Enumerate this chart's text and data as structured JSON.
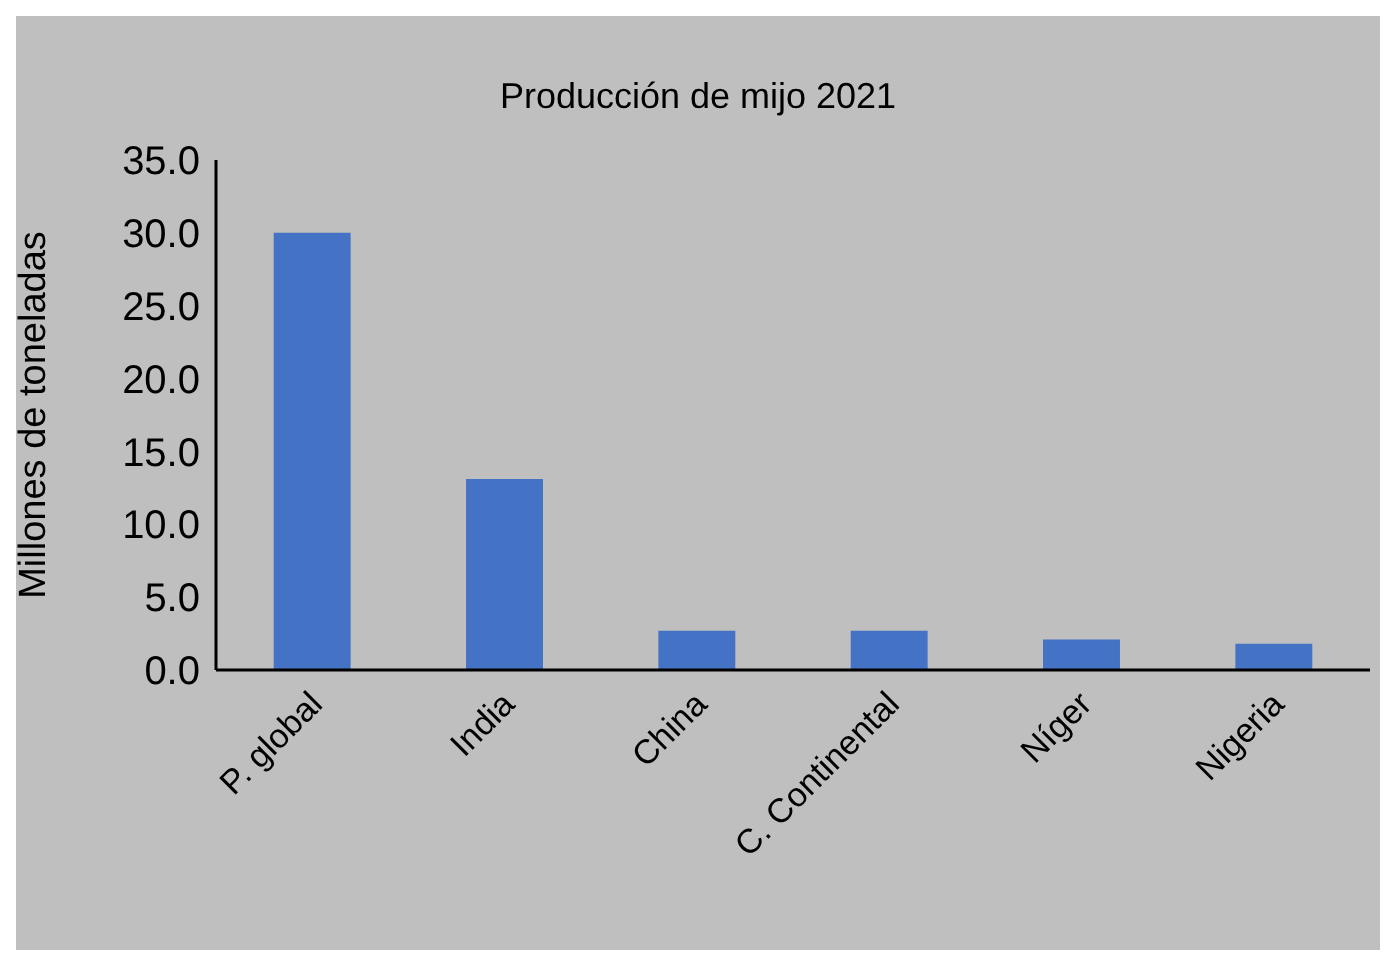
{
  "chart_data": {
    "type": "bar",
    "title": "Producción de mijo 2021",
    "ylabel": "Millones de toneladas",
    "categories": [
      "P. global",
      "India",
      "China",
      "C. Continental",
      "Níger",
      "Nigeria"
    ],
    "values": [
      30.0,
      13.1,
      2.7,
      2.7,
      2.1,
      1.8
    ],
    "color": "#4472c4",
    "ylim": [
      0,
      35
    ],
    "yticks": [
      {
        "value": 0,
        "label": "0.0"
      },
      {
        "value": 5,
        "label": "5.0"
      },
      {
        "value": 10,
        "label": "10.0"
      },
      {
        "value": 15,
        "label": "15.0"
      },
      {
        "value": 20,
        "label": "20.0"
      },
      {
        "value": 25,
        "label": "25.0"
      },
      {
        "value": 30,
        "label": "30.0"
      },
      {
        "value": 35,
        "label": "35.0"
      }
    ],
    "grid": false,
    "legend": false
  }
}
